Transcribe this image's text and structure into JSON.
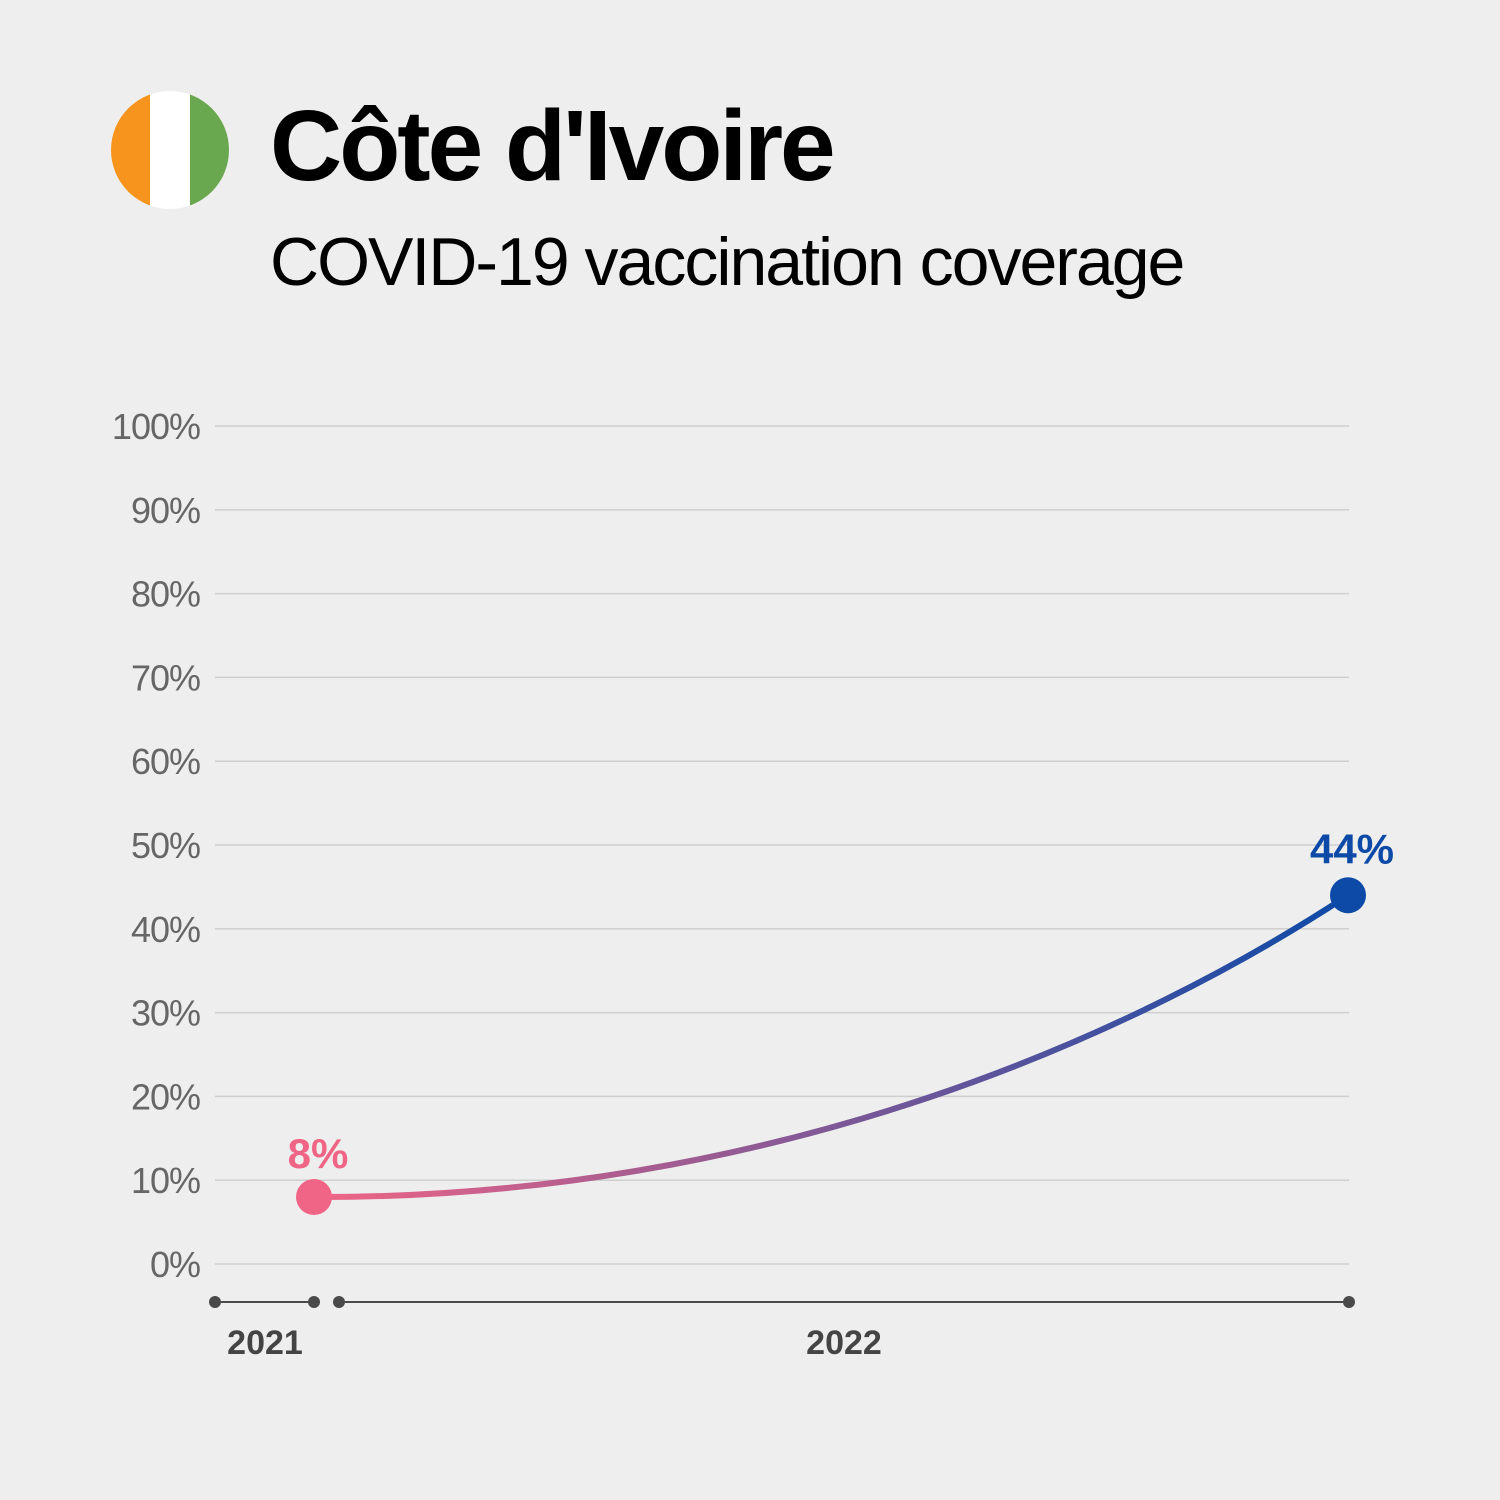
{
  "header": {
    "title": "Côte d'Ivoire",
    "subtitle": "COVID-19 vaccination coverage",
    "flag_colors": [
      "#f7941d",
      "#ffffff",
      "#6aa84f"
    ]
  },
  "colors": {
    "start": "#f06586",
    "end": "#0d4aa7",
    "grid": "#cfcfcf",
    "axis": "#4a4a4a",
    "tick_text": "#666666",
    "year_text": "#444444"
  },
  "chart_data": {
    "type": "line",
    "title": "COVID-19 vaccination coverage",
    "ylim": [
      0,
      100
    ],
    "yticks": [
      0,
      10,
      20,
      30,
      40,
      50,
      60,
      70,
      80,
      90,
      100
    ],
    "ytick_labels": [
      "0%",
      "10%",
      "20%",
      "30%",
      "40%",
      "50%",
      "60%",
      "70%",
      "80%",
      "90%",
      "100%"
    ],
    "year_labels": [
      "2021",
      "2022"
    ],
    "grid": true,
    "series": [
      {
        "points": [
          {
            "x": "2021-12",
            "y": 8,
            "label": "8%"
          },
          {
            "x": "2022-12",
            "y": 44,
            "label": "44%"
          }
        ]
      }
    ]
  }
}
